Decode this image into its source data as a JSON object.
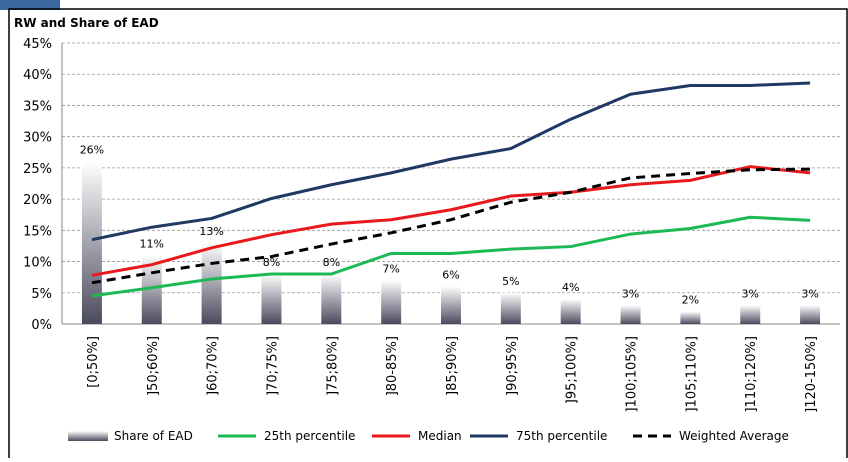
{
  "chart_data": {
    "type": "bar-line",
    "title": "RW and Share of EAD",
    "categories": [
      "[0;50%]",
      "]50;60%]",
      "]60;70%]",
      "]70;75%]",
      "]75;80%]",
      "]80-85%]",
      "]85;90%]",
      "]90;95%]",
      "]95;100%]",
      "]100;105%]",
      "]105;110%]",
      "]110;120%]",
      "]120-150%]"
    ],
    "series": [
      {
        "name": "Share of EAD",
        "type": "bar",
        "color": "#9a9aa6",
        "values": [
          26,
          11,
          13,
          8,
          8,
          7,
          6,
          5,
          4,
          3,
          2,
          3,
          3
        ],
        "value_labels": [
          "26%",
          "11%",
          "13%",
          "8%",
          "8%",
          "7%",
          "6%",
          "5%",
          "4%",
          "3%",
          "2%",
          "3%",
          "3%"
        ]
      },
      {
        "name": "25th percentile",
        "type": "line",
        "color": "#1db954",
        "values": [
          4.5,
          5.8,
          7.2,
          8.0,
          8.0,
          11.3,
          11.3,
          12.0,
          12.4,
          14.4,
          15.3,
          17.1,
          16.6
        ]
      },
      {
        "name": "Median",
        "type": "line",
        "color": "#e8191c",
        "values": [
          7.8,
          9.5,
          12.2,
          14.3,
          16.0,
          16.7,
          18.3,
          20.5,
          21.1,
          22.3,
          23.0,
          25.2,
          24.2
        ]
      },
      {
        "name": "75th percentile",
        "type": "line",
        "color": "#1f3864",
        "values": [
          13.5,
          15.5,
          16.9,
          20.1,
          22.3,
          24.2,
          26.4,
          28.1,
          32.8,
          36.8,
          38.2,
          38.2,
          38.6
        ]
      },
      {
        "name": "Weighted Average",
        "type": "line",
        "color": "#000000",
        "dashed": true,
        "values": [
          6.6,
          8.2,
          9.7,
          10.8,
          12.8,
          14.6,
          16.7,
          19.5,
          21.1,
          23.4,
          24.1,
          24.7,
          24.8
        ]
      }
    ],
    "ylim": [
      0,
      45
    ],
    "yticks": [
      {
        "value": 0,
        "label": "0%"
      },
      {
        "value": 5,
        "label": "5%"
      },
      {
        "value": 10,
        "label": "10%"
      },
      {
        "value": 15,
        "label": "15%"
      },
      {
        "value": 20,
        "label": "20%"
      },
      {
        "value": 25,
        "label": "25%"
      },
      {
        "value": 30,
        "label": "30%"
      },
      {
        "value": 35,
        "label": "35%"
      },
      {
        "value": 40,
        "label": "40%"
      },
      {
        "value": 45,
        "label": "45%"
      }
    ],
    "grid": true,
    "legend": "bottom"
  }
}
